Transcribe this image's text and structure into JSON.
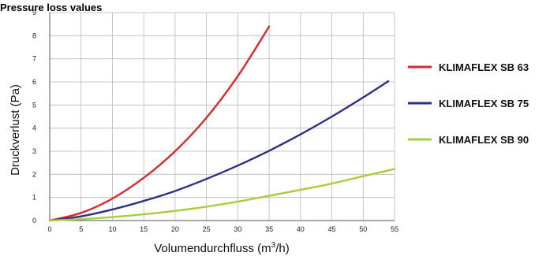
{
  "chart_data": {
    "type": "line",
    "title": "Pressure loss values",
    "xlabel": "Volumendurchfluss (m³/h)",
    "ylabel": "Druckverlust  (Pa)",
    "xlim": [
      0,
      55
    ],
    "ylim": [
      0,
      9
    ],
    "x_ticks": [
      "0",
      "5",
      "10",
      "15",
      "20",
      "25",
      "30",
      "35",
      "40",
      "45",
      "50",
      "55"
    ],
    "y_ticks": [
      "0",
      "1",
      "2",
      "3",
      "4",
      "5",
      "6",
      "7",
      "8",
      "9"
    ],
    "grid": true,
    "legend_position": "right",
    "series": [
      {
        "name": "KLIMAFLEX SB 63",
        "color": "#e3262d",
        "x": [
          0,
          5,
          10,
          15,
          20,
          25,
          30,
          35
        ],
        "y": [
          0,
          0.33,
          0.95,
          1.85,
          3.0,
          4.45,
          6.25,
          8.4
        ]
      },
      {
        "name": "KLIMAFLEX SB 75",
        "color": "#2b3087",
        "x": [
          0,
          5,
          10,
          15,
          20,
          25,
          30,
          35,
          40,
          45,
          50,
          54
        ],
        "y": [
          0,
          0.18,
          0.48,
          0.85,
          1.28,
          1.8,
          2.38,
          3.02,
          3.73,
          4.5,
          5.33,
          6.03
        ]
      },
      {
        "name": "KLIMAFLEX SB 90",
        "color": "#a6cf3a",
        "x": [
          0,
          5,
          10,
          15,
          20,
          25,
          30,
          35,
          40,
          45,
          50,
          55
        ],
        "y": [
          0,
          0.06,
          0.15,
          0.27,
          0.42,
          0.6,
          0.82,
          1.07,
          1.33,
          1.6,
          1.92,
          2.23
        ]
      }
    ]
  }
}
